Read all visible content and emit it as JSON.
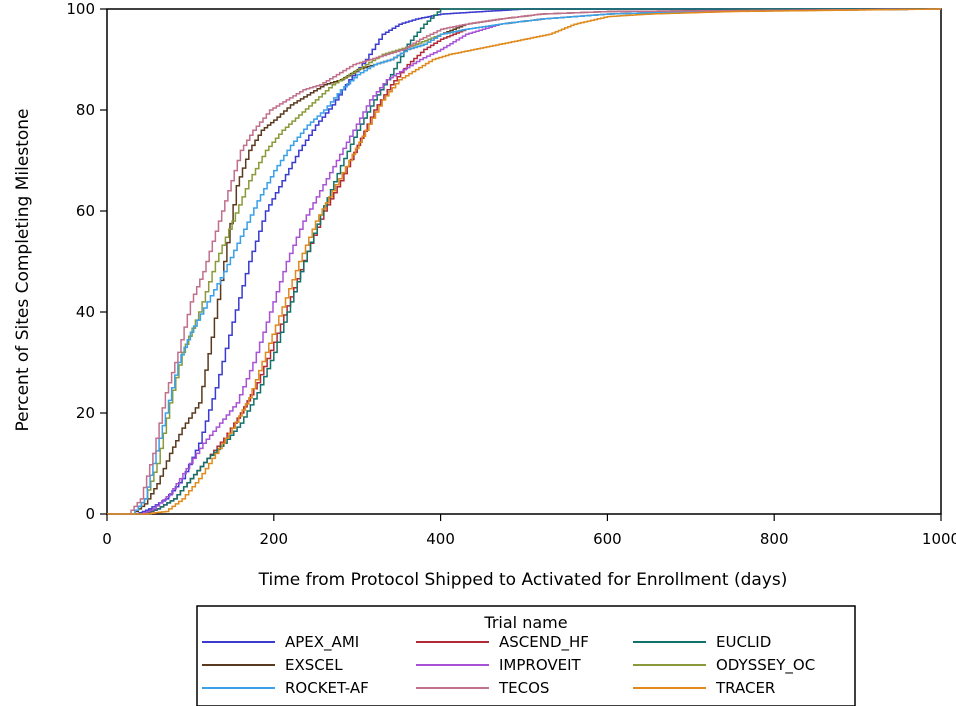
{
  "chart_data": {
    "type": "line",
    "step": true,
    "xlabel": "Time from Protocol Shipped to Activated for Enrollment (days)",
    "ylabel": "Percent of Sites Completing Milestone",
    "xlim": [
      0,
      1000
    ],
    "ylim": [
      0,
      100
    ],
    "xticks": [
      0,
      200,
      400,
      600,
      800,
      1000
    ],
    "yticks": [
      0,
      20,
      40,
      60,
      80,
      100
    ],
    "grid": false,
    "legend": {
      "title": "Trial name",
      "placement": "bottom"
    },
    "series": [
      {
        "name": "APEX_AMI",
        "color": "#3b3bd0",
        "points": [
          [
            0,
            0
          ],
          [
            35,
            0
          ],
          [
            50,
            1
          ],
          [
            70,
            3
          ],
          [
            90,
            7
          ],
          [
            110,
            14
          ],
          [
            130,
            25
          ],
          [
            150,
            38
          ],
          [
            170,
            50
          ],
          [
            190,
            60
          ],
          [
            210,
            66
          ],
          [
            230,
            72
          ],
          [
            250,
            77
          ],
          [
            270,
            81
          ],
          [
            290,
            86
          ],
          [
            310,
            90
          ],
          [
            330,
            95
          ],
          [
            350,
            97
          ],
          [
            370,
            98
          ],
          [
            400,
            99
          ],
          [
            450,
            99.5
          ],
          [
            500,
            100
          ],
          [
            1000,
            100
          ]
        ]
      },
      {
        "name": "ASCEND_HF",
        "color": "#b02a37",
        "points": [
          [
            0,
            0
          ],
          [
            45,
            0
          ],
          [
            60,
            1
          ],
          [
            80,
            3
          ],
          [
            100,
            7
          ],
          [
            120,
            11
          ],
          [
            140,
            15
          ],
          [
            160,
            20
          ],
          [
            180,
            26
          ],
          [
            200,
            34
          ],
          [
            220,
            43
          ],
          [
            240,
            52
          ],
          [
            260,
            60
          ],
          [
            280,
            66
          ],
          [
            300,
            73
          ],
          [
            320,
            80
          ],
          [
            340,
            85
          ],
          [
            360,
            89
          ],
          [
            380,
            92
          ],
          [
            400,
            94
          ],
          [
            430,
            96
          ],
          [
            470,
            97
          ],
          [
            520,
            98
          ],
          [
            600,
            99
          ],
          [
            700,
            99.5
          ],
          [
            1000,
            100
          ]
        ]
      },
      {
        "name": "EUCLID",
        "color": "#13716b",
        "points": [
          [
            0,
            0
          ],
          [
            40,
            0
          ],
          [
            60,
            1
          ],
          [
            80,
            3
          ],
          [
            100,
            7
          ],
          [
            120,
            11
          ],
          [
            140,
            14
          ],
          [
            160,
            18
          ],
          [
            180,
            24
          ],
          [
            200,
            32
          ],
          [
            220,
            42
          ],
          [
            240,
            52
          ],
          [
            260,
            61
          ],
          [
            280,
            69
          ],
          [
            300,
            76
          ],
          [
            320,
            82
          ],
          [
            340,
            87
          ],
          [
            360,
            93
          ],
          [
            380,
            97
          ],
          [
            400,
            100
          ],
          [
            1000,
            100
          ]
        ]
      },
      {
        "name": "EXSCEL",
        "color": "#5a3a1e",
        "points": [
          [
            0,
            0
          ],
          [
            30,
            0
          ],
          [
            45,
            2
          ],
          [
            60,
            6
          ],
          [
            75,
            12
          ],
          [
            90,
            17
          ],
          [
            110,
            22
          ],
          [
            125,
            35
          ],
          [
            140,
            50
          ],
          [
            155,
            65
          ],
          [
            170,
            72
          ],
          [
            185,
            76
          ],
          [
            200,
            78
          ],
          [
            220,
            81
          ],
          [
            240,
            83
          ],
          [
            260,
            85
          ],
          [
            280,
            86
          ],
          [
            300,
            88
          ],
          [
            320,
            89
          ],
          [
            340,
            90
          ],
          [
            360,
            92
          ],
          [
            380,
            93
          ],
          [
            400,
            95
          ],
          [
            430,
            97
          ],
          [
            470,
            98
          ],
          [
            520,
            99
          ],
          [
            600,
            99.5
          ],
          [
            1000,
            100
          ]
        ]
      },
      {
        "name": "IMPROVEIT",
        "color": "#a852d6",
        "points": [
          [
            0,
            0
          ],
          [
            40,
            0
          ],
          [
            55,
            1
          ],
          [
            75,
            4
          ],
          [
            95,
            9
          ],
          [
            115,
            14
          ],
          [
            135,
            18
          ],
          [
            155,
            22
          ],
          [
            175,
            30
          ],
          [
            195,
            40
          ],
          [
            215,
            50
          ],
          [
            235,
            58
          ],
          [
            255,
            64
          ],
          [
            275,
            70
          ],
          [
            295,
            76
          ],
          [
            315,
            82
          ],
          [
            335,
            86
          ],
          [
            355,
            88
          ],
          [
            375,
            90
          ],
          [
            400,
            92
          ],
          [
            430,
            95
          ],
          [
            470,
            97
          ],
          [
            520,
            98
          ],
          [
            600,
            99
          ],
          [
            700,
            99.5
          ],
          [
            1000,
            100
          ]
        ]
      },
      {
        "name": "ODYSSEY_OC",
        "color": "#8a9a3a",
        "points": [
          [
            0,
            0
          ],
          [
            30,
            0
          ],
          [
            45,
            3
          ],
          [
            60,
            10
          ],
          [
            75,
            22
          ],
          [
            90,
            32
          ],
          [
            110,
            40
          ],
          [
            130,
            50
          ],
          [
            150,
            58
          ],
          [
            170,
            66
          ],
          [
            190,
            72
          ],
          [
            210,
            76
          ],
          [
            230,
            79
          ],
          [
            250,
            82
          ],
          [
            270,
            85
          ],
          [
            290,
            87
          ],
          [
            310,
            89
          ],
          [
            330,
            91
          ],
          [
            350,
            92
          ],
          [
            370,
            93
          ],
          [
            400,
            95
          ],
          [
            430,
            96
          ],
          [
            470,
            97
          ],
          [
            520,
            98
          ],
          [
            600,
            99
          ],
          [
            700,
            99.5
          ],
          [
            1000,
            100
          ]
        ]
      },
      {
        "name": "ROCKET-AF",
        "color": "#3aa0e8",
        "points": [
          [
            0,
            0
          ],
          [
            30,
            0
          ],
          [
            45,
            3
          ],
          [
            55,
            10
          ],
          [
            70,
            20
          ],
          [
            85,
            30
          ],
          [
            100,
            36
          ],
          [
            120,
            42
          ],
          [
            140,
            48
          ],
          [
            160,
            55
          ],
          [
            180,
            62
          ],
          [
            200,
            68
          ],
          [
            220,
            73
          ],
          [
            240,
            77
          ],
          [
            260,
            80
          ],
          [
            280,
            84
          ],
          [
            300,
            87
          ],
          [
            320,
            89
          ],
          [
            340,
            90
          ],
          [
            360,
            92
          ],
          [
            380,
            93
          ],
          [
            400,
            95
          ],
          [
            430,
            96
          ],
          [
            470,
            97
          ],
          [
            520,
            98
          ],
          [
            600,
            99
          ],
          [
            700,
            99.5
          ],
          [
            1000,
            100
          ]
        ]
      },
      {
        "name": "TECOS",
        "color": "#c0708a",
        "points": [
          [
            0,
            0
          ],
          [
            25,
            0
          ],
          [
            40,
            3
          ],
          [
            55,
            12
          ],
          [
            70,
            24
          ],
          [
            85,
            32
          ],
          [
            100,
            42
          ],
          [
            115,
            48
          ],
          [
            130,
            56
          ],
          [
            145,
            64
          ],
          [
            160,
            72
          ],
          [
            175,
            76
          ],
          [
            195,
            80
          ],
          [
            215,
            82
          ],
          [
            235,
            84
          ],
          [
            255,
            85
          ],
          [
            275,
            87
          ],
          [
            295,
            89
          ],
          [
            315,
            90
          ],
          [
            335,
            91
          ],
          [
            355,
            92
          ],
          [
            375,
            94
          ],
          [
            400,
            96
          ],
          [
            430,
            97
          ],
          [
            470,
            98
          ],
          [
            520,
            99
          ],
          [
            600,
            99.5
          ],
          [
            1000,
            100
          ]
        ]
      },
      {
        "name": "TRACER",
        "color": "#e08a1c",
        "points": [
          [
            0,
            0
          ],
          [
            45,
            0
          ],
          [
            70,
            0.5
          ],
          [
            90,
            3
          ],
          [
            110,
            7
          ],
          [
            130,
            12
          ],
          [
            150,
            17
          ],
          [
            170,
            23
          ],
          [
            190,
            32
          ],
          [
            210,
            41
          ],
          [
            230,
            50
          ],
          [
            250,
            58
          ],
          [
            270,
            64
          ],
          [
            290,
            70
          ],
          [
            310,
            76
          ],
          [
            330,
            82
          ],
          [
            350,
            86
          ],
          [
            370,
            88
          ],
          [
            390,
            90
          ],
          [
            410,
            91
          ],
          [
            440,
            92
          ],
          [
            470,
            93
          ],
          [
            500,
            94
          ],
          [
            530,
            95
          ],
          [
            560,
            97
          ],
          [
            600,
            98.5
          ],
          [
            650,
            99
          ],
          [
            750,
            99.5
          ],
          [
            850,
            99.7
          ],
          [
            1000,
            100
          ]
        ]
      }
    ]
  }
}
